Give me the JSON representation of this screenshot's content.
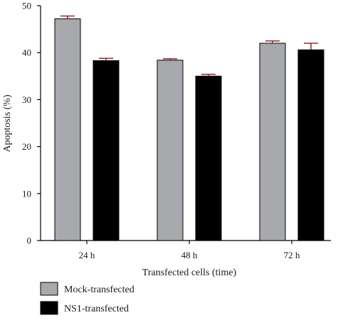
{
  "chart_data": {
    "type": "bar",
    "title": "",
    "xlabel": "Transfected cells (time)",
    "ylabel": "Apoptosis (%)",
    "ylim": [
      0,
      50
    ],
    "yticks": [
      "0",
      "10",
      "20",
      "30",
      "40",
      "50"
    ],
    "categories": [
      "24 h",
      "48 h",
      "72 h"
    ],
    "series": [
      {
        "name": "Mock-transfected",
        "values": [
          47.2,
          38.4,
          42.0
        ],
        "errors": [
          0.6,
          0.3,
          0.5
        ],
        "color": "#a7a9ac"
      },
      {
        "name": "NS1-transfected",
        "values": [
          38.3,
          35.0,
          40.6
        ],
        "errors": [
          0.5,
          0.4,
          1.4
        ],
        "color": "#000000"
      }
    ],
    "error_bar_color": "#8b1a1a",
    "grid": false,
    "legend_position": "bottom-left"
  }
}
